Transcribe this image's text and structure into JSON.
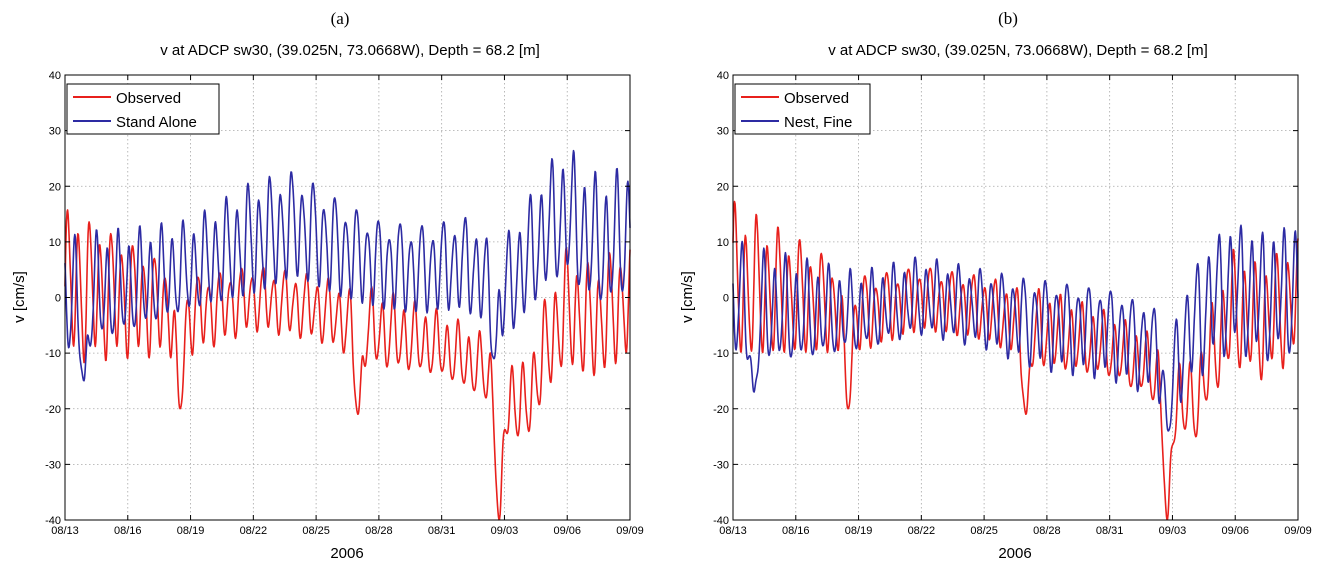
{
  "chart_data": [
    {
      "type": "line",
      "panel_label": "(a)",
      "title": "v at ADCP sw30, (39.025N, 73.0668W), Depth = 68.2 [m]",
      "xlabel": "2006",
      "ylabel": "v [cm/s]",
      "x_ticks": [
        "08/13",
        "08/16",
        "08/19",
        "08/22",
        "08/25",
        "08/28",
        "08/31",
        "09/03",
        "09/06",
        "09/09"
      ],
      "y_ticks": [
        "-40",
        "-30",
        "-20",
        "-10",
        "0",
        "10",
        "20",
        "30",
        "40"
      ],
      "xlim": [
        "2006-08-13",
        "2006-09-09"
      ],
      "ylim": [
        -40,
        40
      ],
      "grid": true,
      "legend_position": "top-left",
      "series": [
        {
          "name": "Observed",
          "color": "#e8201c",
          "mean_days": [
            0,
            3,
            6,
            9,
            12,
            14,
            16,
            18,
            20,
            21,
            22,
            23,
            24,
            25,
            26,
            27
          ],
          "mean_values": [
            2,
            0,
            -3,
            0,
            -2,
            -5,
            -7,
            -9,
            -13,
            -17,
            -20,
            -9,
            -2,
            -5,
            -3,
            0
          ],
          "amplitude_days": [
            0,
            3,
            6,
            9,
            12,
            15,
            18,
            20,
            21,
            22,
            24,
            27
          ],
          "amplitude_values": [
            12,
            9,
            6,
            5,
            5,
            6,
            5,
            5,
            7,
            6,
            9,
            9
          ],
          "events": [
            {
              "day": 20.75,
              "value": -40
            },
            {
              "day": 5.5,
              "value": -20
            },
            {
              "day": 14.0,
              "value": -21
            }
          ]
        },
        {
          "name": "Stand Alone",
          "color": "#2d2ba3",
          "mean_days": [
            0,
            3,
            6,
            9,
            11,
            13,
            15,
            17,
            19,
            20,
            21,
            22,
            23,
            24,
            25,
            26,
            27
          ],
          "mean_values": [
            0,
            2,
            5,
            10,
            13,
            9,
            6,
            5,
            6,
            4,
            1,
            6,
            12,
            15,
            10,
            9,
            12
          ],
          "amplitude_days": [
            0,
            3,
            6,
            9,
            12,
            15,
            18,
            21,
            24,
            27
          ],
          "amplitude_values": [
            9,
            8,
            7,
            9,
            8,
            7,
            7,
            8,
            10,
            10
          ],
          "events": [
            {
              "day": 20.5,
              "value": -11
            },
            {
              "day": 0.9,
              "value": -15
            }
          ]
        }
      ]
    },
    {
      "type": "line",
      "panel_label": "(b)",
      "title": "v at ADCP sw30, (39.025N, 73.0668W), Depth = 68.2 [m]",
      "xlabel": "2006",
      "ylabel": "v [cm/s]",
      "x_ticks": [
        "08/13",
        "08/16",
        "08/19",
        "08/22",
        "08/25",
        "08/28",
        "08/31",
        "09/03",
        "09/06",
        "09/09"
      ],
      "y_ticks": [
        "-40",
        "-30",
        "-20",
        "-10",
        "0",
        "10",
        "20",
        "30",
        "40"
      ],
      "xlim": [
        "2006-08-13",
        "2006-09-09"
      ],
      "ylim": [
        -40,
        40
      ],
      "grid": true,
      "legend_position": "top-left",
      "series": [
        {
          "name": "Observed",
          "color": "#e8201c",
          "mean_days": [
            0,
            3,
            6,
            9,
            12,
            14,
            16,
            18,
            20,
            21,
            22,
            23,
            24,
            25,
            26,
            27
          ],
          "mean_values": [
            2,
            0,
            -3,
            0,
            -2,
            -5,
            -7,
            -9,
            -13,
            -17,
            -20,
            -9,
            -2,
            -5,
            -3,
            0
          ],
          "amplitude_days": [
            0,
            3,
            6,
            9,
            12,
            15,
            18,
            20,
            21,
            22,
            24,
            27
          ],
          "amplitude_values": [
            12,
            9,
            6,
            5,
            5,
            6,
            5,
            5,
            7,
            6,
            9,
            9
          ],
          "events": [
            {
              "day": 20.75,
              "value": -40
            },
            {
              "day": 5.5,
              "value": -20
            },
            {
              "day": 14.0,
              "value": -21
            }
          ]
        },
        {
          "name": "Nest, Fine",
          "color": "#2d2ba3",
          "mean_days": [
            0,
            3,
            6,
            9,
            12,
            14,
            16,
            18,
            20,
            21,
            22,
            23,
            24,
            25,
            26,
            27
          ],
          "mean_values": [
            -1,
            -3,
            -3,
            0,
            -2,
            -4,
            -5,
            -6,
            -9,
            -12,
            -5,
            0,
            2,
            0,
            0,
            2
          ],
          "amplitude_days": [
            0,
            3,
            6,
            9,
            12,
            15,
            18,
            20,
            21,
            22,
            24,
            27
          ],
          "amplitude_values": [
            9,
            8,
            6,
            6,
            6,
            7,
            7,
            7,
            7,
            9,
            10,
            10
          ],
          "events": [
            {
              "day": 20.8,
              "value": -24
            },
            {
              "day": 1.0,
              "value": -17
            }
          ]
        }
      ]
    }
  ]
}
